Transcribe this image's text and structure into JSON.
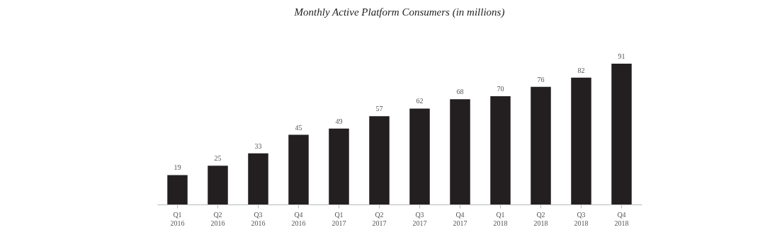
{
  "chart_data": {
    "type": "bar",
    "title": "Monthly Active Platform Consumers (in millions)",
    "categories": [
      "Q1 2016",
      "Q2 2016",
      "Q3 2016",
      "Q4 2016",
      "Q1 2017",
      "Q2 2017",
      "Q3 2017",
      "Q4 2017",
      "Q1 2018",
      "Q2 2018",
      "Q3 2018",
      "Q4 2018"
    ],
    "values": [
      19,
      25,
      33,
      45,
      49,
      57,
      62,
      68,
      70,
      76,
      82,
      91
    ],
    "color": "#231f20",
    "data_labels": true
  }
}
